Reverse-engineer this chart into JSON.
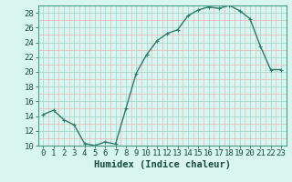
{
  "xlabel": "Humidex (Indice chaleur)",
  "x": [
    0,
    1,
    2,
    3,
    4,
    5,
    6,
    7,
    8,
    9,
    10,
    11,
    12,
    13,
    14,
    15,
    16,
    17,
    18,
    19,
    20,
    21,
    22,
    23
  ],
  "y": [
    14.2,
    14.8,
    13.5,
    12.8,
    10.3,
    10.0,
    10.5,
    10.2,
    15.0,
    19.8,
    22.3,
    24.2,
    25.2,
    25.7,
    27.6,
    28.4,
    28.8,
    28.6,
    29.0,
    28.3,
    27.2,
    23.5,
    20.3,
    20.3
  ],
  "line_color": "#2d7a6a",
  "marker": "P",
  "marker_size": 2.5,
  "bg_color": "#d8f5f0",
  "major_grid_color": "#a8d8d0",
  "minor_grid_color": "#e8b8b8",
  "ylim": [
    10,
    29
  ],
  "yticks": [
    10,
    12,
    14,
    16,
    18,
    20,
    22,
    24,
    26,
    28
  ],
  "xlim": [
    -0.5,
    23.5
  ],
  "xticks": [
    0,
    1,
    2,
    3,
    4,
    5,
    6,
    7,
    8,
    9,
    10,
    11,
    12,
    13,
    14,
    15,
    16,
    17,
    18,
    19,
    20,
    21,
    22,
    23
  ],
  "xlabel_fontsize": 7.5,
  "tick_fontsize": 6.5,
  "line_width": 1.0,
  "spine_color": "#4a9a8a"
}
